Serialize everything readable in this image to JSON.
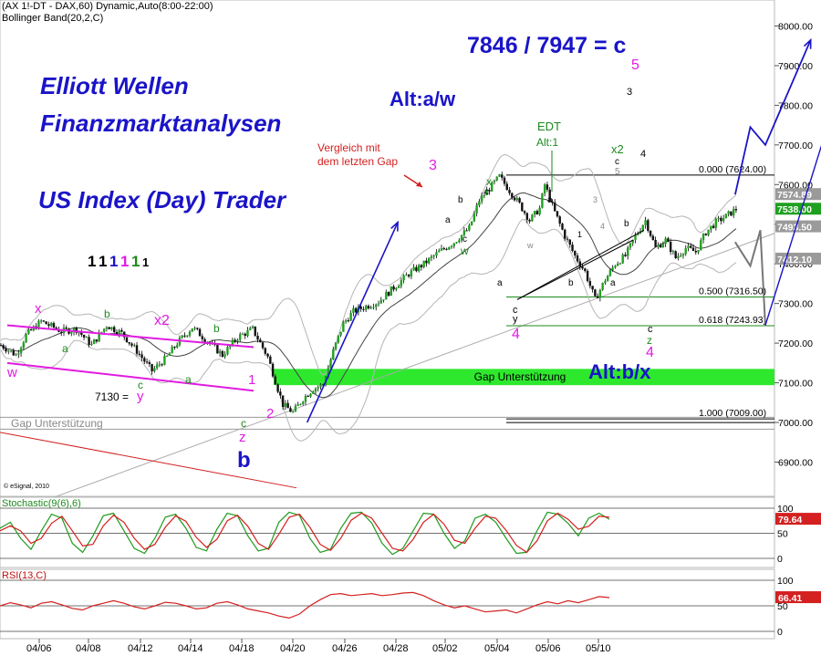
{
  "header": {
    "symbol_line": "(AX 1!-DT - DAX,60) Dynamic,Auto(8:00-22:00)",
    "indicator_line": "Bollinger Band(20,2,C)"
  },
  "branding": {
    "line1": "Elliott Wellen",
    "line2": "Finanzmarktanalysen",
    "line3": "US Index (Day) Trader"
  },
  "copyright": "© eSignal, 2010",
  "colors": {
    "blue_title": "#1a14c8",
    "magenta": "#e11be1",
    "green_label": "#1c8a1c",
    "candle_up": "#22a022",
    "candle_down": "#111111",
    "gap_band": "#2ee82e",
    "channel": "#e11be1",
    "stoch_k": "#1f9a1f",
    "stoch_d": "#d42020",
    "rsi": "#d42020",
    "last_price_bg": "#1fa01f"
  },
  "annotations": {
    "target": "7846 / 7947 = c",
    "alt_aw": "Alt:a/w",
    "alt_bx": "Alt:b/x",
    "compare_gap": [
      "Vergleich mit",
      "dem letzten Gap"
    ],
    "edt": [
      "EDT",
      "Alt:1"
    ],
    "level_7130": "7130 =",
    "gap_support_band": "Gap Unterstützung",
    "gap_support_old": "Gap Unterstützung"
  },
  "wave_labels": {
    "w": "w",
    "x": "x",
    "y": "y",
    "z": "z",
    "a": "a",
    "b": "b",
    "c": "c",
    "x2": "x2",
    "one": "1",
    "two": "2",
    "three": "3",
    "four": "4",
    "five": "5",
    "count_row": [
      "1",
      "1",
      "1",
      "1",
      "1",
      "1"
    ]
  },
  "chart_data": [
    {
      "type": "candlestick",
      "title": "",
      "y_axis_ticks": [
        "8000.00",
        "7900.00",
        "7800.00",
        "7700.00",
        "7600.00",
        "7500.00",
        "7400.00",
        "7300.00",
        "7200.00",
        "7100.00",
        "7000.00",
        "6900.00"
      ],
      "ylim": [
        6830,
        8040
      ],
      "x_tick_labels": [
        "04/06",
        "04/08",
        "04/12",
        "04/14",
        "04/18",
        "04/20",
        "04/26",
        "04/28",
        "05/02",
        "05/04",
        "05/06",
        "05/10"
      ],
      "fibonacci": [
        {
          "label": "0.000 (7624.00)",
          "value": 7624.0
        },
        {
          "label": "0.500 (7316.50)",
          "value": 7316.5
        },
        {
          "label": "0.618 (7243.93)",
          "value": 7243.93
        },
        {
          "label": "1.000 (7009.00)",
          "value": 7009.0
        }
      ],
      "price_tags": [
        {
          "label": "7574.89",
          "value": 7574.89
        },
        {
          "label": "7538.00",
          "value": 7538.0,
          "highlight": true
        },
        {
          "label": "7493.50",
          "value": 7493.5
        },
        {
          "label": "7412.10",
          "value": 7412.1
        }
      ],
      "gap_zone": [
        7094,
        7135
      ],
      "price_path": [
        [
          0,
          7195
        ],
        [
          3,
          7170
        ],
        [
          5,
          7220
        ],
        [
          8,
          7255
        ],
        [
          12,
          7230
        ],
        [
          15,
          7235
        ],
        [
          18,
          7195
        ],
        [
          21,
          7245
        ],
        [
          24,
          7225
        ],
        [
          27,
          7180
        ],
        [
          30,
          7130
        ],
        [
          33,
          7165
        ],
        [
          35,
          7200
        ],
        [
          38,
          7240
        ],
        [
          41,
          7205
        ],
        [
          44,
          7170
        ],
        [
          47,
          7215
        ],
        [
          50,
          7235
        ],
        [
          53,
          7165
        ],
        [
          56,
          7045
        ],
        [
          58,
          7025
        ],
        [
          60,
          7060
        ],
        [
          62,
          7085
        ],
        [
          64,
          7095
        ],
        [
          66,
          7180
        ],
        [
          68,
          7250
        ],
        [
          70,
          7280
        ],
        [
          72,
          7290
        ],
        [
          75,
          7305
        ],
        [
          78,
          7340
        ],
        [
          81,
          7375
        ],
        [
          84,
          7400
        ],
        [
          87,
          7430
        ],
        [
          90,
          7455
        ],
        [
          93,
          7490
        ],
        [
          95,
          7560
        ],
        [
          97,
          7590
        ],
        [
          99,
          7620
        ],
        [
          101,
          7585
        ],
        [
          103,
          7550
        ],
        [
          105,
          7510
        ],
        [
          107,
          7540
        ],
        [
          108,
          7600
        ],
        [
          110,
          7530
        ],
        [
          112,
          7470
        ],
        [
          114,
          7420
        ],
        [
          116,
          7380
        ],
        [
          118,
          7310
        ],
        [
          120,
          7360
        ],
        [
          122,
          7400
        ],
        [
          124,
          7420
        ],
        [
          126,
          7470
        ],
        [
          128,
          7510
        ],
        [
          130,
          7440
        ],
        [
          132,
          7460
        ],
        [
          134,
          7415
        ],
        [
          136,
          7440
        ],
        [
          138,
          7430
        ],
        [
          140,
          7480
        ],
        [
          142,
          7505
        ],
        [
          144,
          7520
        ],
        [
          146,
          7538
        ]
      ],
      "projections": {
        "blue_up_from_b": [
          [
            61,
            7000
          ],
          [
            79,
            7505
          ]
        ],
        "blue_target_path": [
          [
            146,
            7575
          ],
          [
            149,
            7745
          ],
          [
            152,
            7700
          ],
          [
            161,
            7965
          ]
        ],
        "blue_alt_path": [
          [
            152,
            7245
          ],
          [
            167,
            7855
          ]
        ],
        "grey_path": [
          [
            146,
            7455
          ],
          [
            149,
            7395
          ],
          [
            151,
            7485
          ],
          [
            152,
            7243
          ]
        ]
      }
    },
    {
      "type": "line",
      "title": "Stochastic(9(6),6)",
      "y_axis_ticks": [
        "100",
        "50",
        "0"
      ],
      "ylim": [
        0,
        100
      ],
      "last_value_label": "79.64",
      "series": [
        {
          "name": "%K",
          "color": "#1f9a1f",
          "values": [
            60,
            72,
            40,
            18,
            55,
            88,
            80,
            30,
            12,
            45,
            85,
            90,
            55,
            20,
            10,
            40,
            82,
            88,
            60,
            22,
            15,
            58,
            90,
            85,
            45,
            15,
            20,
            72,
            92,
            86,
            40,
            12,
            18,
            60,
            90,
            92,
            70,
            30,
            8,
            20,
            55,
            90,
            88,
            50,
            20,
            35,
            80,
            88,
            72,
            40,
            10,
            12,
            55,
            92,
            88,
            70,
            45,
            80,
            90,
            78
          ]
        },
        {
          "name": "%D",
          "color": "#d42020",
          "values": [
            55,
            65,
            55,
            30,
            40,
            70,
            84,
            55,
            25,
            28,
            65,
            86,
            72,
            40,
            18,
            28,
            62,
            85,
            74,
            42,
            22,
            38,
            75,
            86,
            64,
            30,
            18,
            48,
            82,
            88,
            62,
            28,
            16,
            40,
            76,
            90,
            80,
            50,
            20,
            15,
            38,
            72,
            88,
            68,
            36,
            30,
            60,
            84,
            80,
            56,
            26,
            12,
            35,
            75,
            90,
            78,
            58,
            64,
            84,
            82
          ]
        }
      ]
    },
    {
      "type": "line",
      "title": "RSI(13,C)",
      "y_axis_ticks": [
        "100",
        "50",
        "0"
      ],
      "ylim": [
        0,
        100
      ],
      "last_value_label": "66.41",
      "series": [
        {
          "name": "RSI",
          "color": "#d42020",
          "values": [
            50,
            56,
            52,
            46,
            55,
            58,
            52,
            45,
            42,
            50,
            55,
            60,
            55,
            48,
            44,
            50,
            57,
            55,
            50,
            44,
            46,
            55,
            58,
            52,
            44,
            40,
            36,
            30,
            26,
            34,
            50,
            62,
            72,
            74,
            70,
            72,
            74,
            70,
            72,
            75,
            76,
            70,
            60,
            52,
            46,
            50,
            44,
            38,
            40,
            42,
            36,
            44,
            52,
            58,
            54,
            60,
            56,
            62,
            68,
            66
          ]
        }
      ]
    }
  ]
}
